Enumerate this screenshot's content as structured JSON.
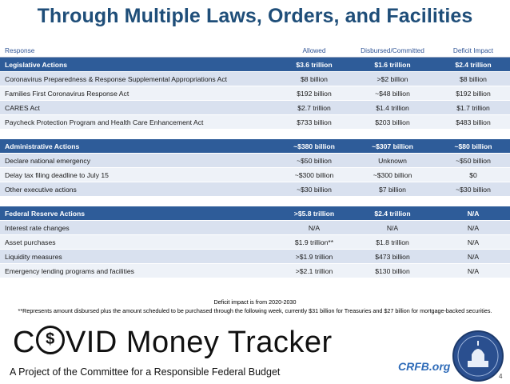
{
  "title": "Through Multiple Laws, Orders, and Facilities",
  "columns": [
    "Response",
    "Allowed",
    "Disbursed/Committed",
    "Deficit Impact"
  ],
  "sections": [
    {
      "header": [
        "Legislative Actions",
        "$3.6 trillion",
        "$1.6 trillion",
        "$2.4 trillion"
      ],
      "rows": [
        [
          "Coronavirus Preparedness & Response Supplemental Appropriations Act",
          "$8 billion",
          ">$2 billion",
          "$8 billion"
        ],
        [
          "Families First Coronavirus Response Act",
          "$192 billion",
          "~$48 billion",
          "$192 billion"
        ],
        [
          "CARES Act",
          "$2.7 trillion",
          "$1.4 trillion",
          "$1.7 trillion"
        ],
        [
          "Paycheck Protection Program and Health Care Enhancement Act",
          "$733 billion",
          "$203 billion",
          "$483 billion"
        ]
      ]
    },
    {
      "header": [
        "Administrative Actions",
        "~$380 billion",
        "~$307 billion",
        "~$80 billion"
      ],
      "rows": [
        [
          "Declare national emergency",
          "~$50 billion",
          "Unknown",
          "~$50 billion"
        ],
        [
          "Delay tax filing deadline to July 15",
          "~$300 billion",
          "~$300 billion",
          "$0"
        ],
        [
          "Other executive actions",
          "~$30 billion",
          "$7 billion",
          "~$30 billion"
        ]
      ]
    },
    {
      "header": [
        "Federal Reserve Actions",
        ">$5.8 trillion",
        "$2.4 trillion",
        "N/A"
      ],
      "rows": [
        [
          "Interest rate changes",
          "N/A",
          "N/A",
          "N/A"
        ],
        [
          "Asset purchases",
          "$1.9 trillion**",
          "$1.8 trillion",
          "N/A"
        ],
        [
          "Liquidity measures",
          ">$1.9 trillion",
          "$473 billion",
          "N/A"
        ],
        [
          "Emergency lending programs and facilities",
          ">$2.1 trillion",
          "$130 billion",
          "N/A"
        ]
      ]
    }
  ],
  "footnotes": {
    "deficit": "Deficit impact is from 2020-2030",
    "asset": "**Represents amount disbursed plus the amount scheduled to be purchased through the following week, currently $31 billion for Treasuries and $27 billion for mortgage-backed securities."
  },
  "logo": {
    "part1": "C",
    "coin_symbol": "$",
    "part2": "VID Money Tracker"
  },
  "tagline": "A Project of the Committee for a Responsible Federal Budget",
  "site": "CRFB.org",
  "page_number": "4"
}
